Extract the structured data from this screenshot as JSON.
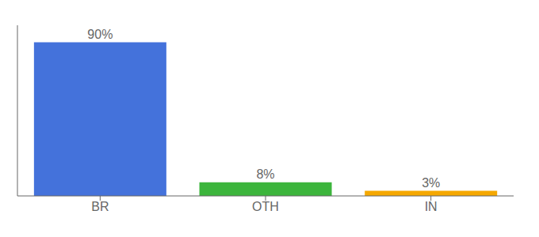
{
  "chart_data": {
    "type": "bar",
    "categories": [
      "BR",
      "OTH",
      "IN"
    ],
    "values": [
      90,
      8,
      3
    ],
    "value_labels": [
      "90%",
      "8%",
      "3%"
    ],
    "colors": [
      "#4472db",
      "#3cb53c",
      "#f5a800"
    ],
    "ylim": [
      0,
      100
    ],
    "data_labels": true,
    "tick_labels": "x"
  }
}
